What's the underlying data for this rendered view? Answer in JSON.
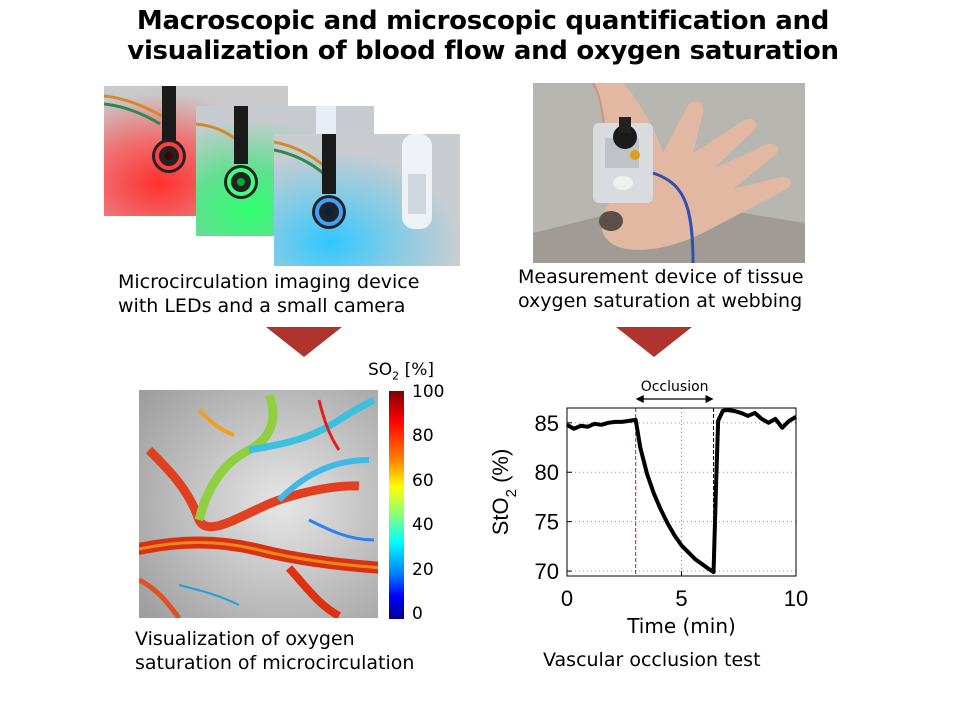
{
  "title": {
    "line1": "Macroscopic and microscopic quantification and",
    "line2": "visualization of blood flow and oxygen saturation"
  },
  "left_panel": {
    "caption_top_line1": "Microcirculation  imaging device",
    "caption_top_line2": "with LEDs and a small camera",
    "led_colors": [
      "#ff2020",
      "#20e050",
      "#2080ff"
    ],
    "colorbar_label": "SO",
    "colorbar_sub": "2",
    "colorbar_unit": " [%]",
    "colorbar_ticks": [
      "100",
      "80",
      "60",
      "40",
      "20",
      "0"
    ],
    "caption_bottom_line1": "Visualization  of oxygen",
    "caption_bottom_line2": "saturation of microcirculation"
  },
  "right_panel": {
    "caption_top_line1": "Measurement device of tissue",
    "caption_top_line2": "oxygen saturation at webbing",
    "occlusion_label": "Occlusion",
    "caption_bottom": "Vascular occlusion test"
  },
  "arrow_color": "#b0342e",
  "chart_data": {
    "type": "line",
    "xlabel": "Time (min)",
    "ylabel": "StO",
    "ylabel_sub": "2",
    "ylabel_unit": " (%)",
    "xlim": [
      0,
      10
    ],
    "ylim": [
      69.5,
      86.5
    ],
    "xticks": [
      0,
      5,
      10
    ],
    "yticks": [
      70,
      75,
      80,
      85
    ],
    "occlusion_start": 3.0,
    "occlusion_end": 6.4,
    "series": [
      {
        "x": [
          0,
          0.3,
          0.6,
          0.9,
          1.2,
          1.5,
          1.8,
          2.1,
          2.4,
          2.7,
          3.0,
          3.2,
          3.5,
          3.8,
          4.1,
          4.4,
          4.7,
          5.0,
          5.3,
          5.6,
          5.9,
          6.2,
          6.4,
          6.5,
          6.6,
          6.8,
          7.0,
          7.3,
          7.6,
          7.9,
          8.2,
          8.5,
          8.8,
          9.1,
          9.4,
          9.7,
          10.0
        ],
        "values": [
          84.8,
          84.4,
          84.7,
          84.6,
          84.9,
          84.8,
          85.0,
          85.1,
          85.1,
          85.2,
          85.3,
          82.5,
          79.8,
          77.8,
          76.2,
          74.8,
          73.6,
          72.6,
          71.9,
          71.2,
          70.7,
          70.2,
          69.9,
          78.0,
          85.2,
          86.2,
          86.3,
          86.2,
          86.0,
          85.7,
          86.0,
          85.4,
          85.0,
          85.4,
          84.5,
          85.2,
          85.6
        ]
      }
    ]
  }
}
